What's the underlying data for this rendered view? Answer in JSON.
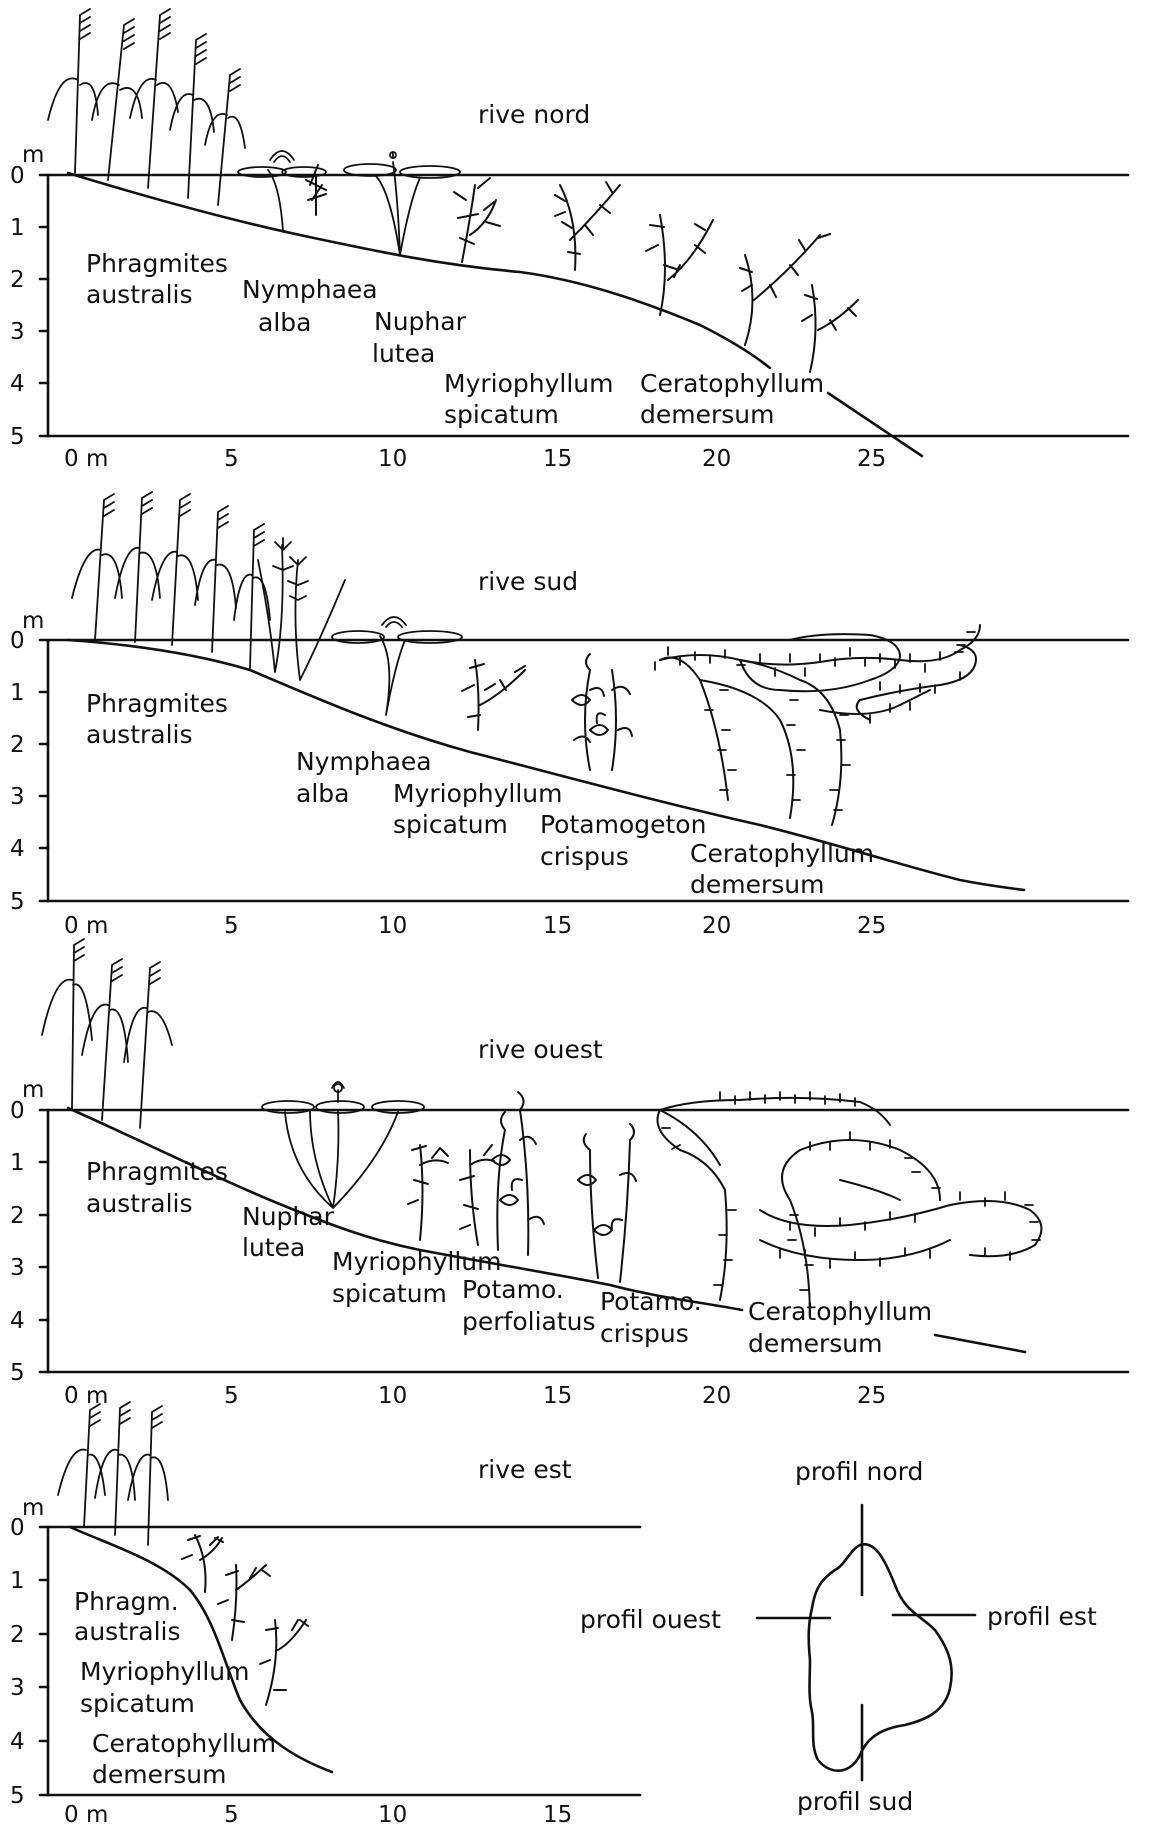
{
  "panels": [
    {
      "id": "nord",
      "title": "rive nord",
      "y_unit": "m",
      "y_ticks": [
        "0",
        "1",
        "2",
        "3",
        "4",
        "5"
      ],
      "x_ticks": [
        "0 m",
        "5",
        "10",
        "15",
        "20",
        "25"
      ],
      "species": [
        {
          "line1": "Phragmites",
          "line2": "australis"
        },
        {
          "line1": "Nymphaea",
          "line2": "alba"
        },
        {
          "line1": "Nuphar",
          "line2": "lutea"
        },
        {
          "line1": "Myriophyllum",
          "line2": "spicatum"
        },
        {
          "line1": "Ceratophyllum",
          "line2": "demersum"
        }
      ]
    },
    {
      "id": "sud",
      "title": "rive sud",
      "y_unit": "m",
      "y_ticks": [
        "0",
        "1",
        "2",
        "3",
        "4",
        "5"
      ],
      "x_ticks": [
        "0 m",
        "5",
        "10",
        "15",
        "20",
        "25"
      ],
      "species": [
        {
          "line1": "Phragmites",
          "line2": "australis"
        },
        {
          "line1": "Nymphaea",
          "line2": "alba"
        },
        {
          "line1": "Myriophyllum",
          "line2": "spicatum"
        },
        {
          "line1": "Potamogeton",
          "line2": "crispus"
        },
        {
          "line1": "Ceratophyllum",
          "line2": "demersum"
        }
      ]
    },
    {
      "id": "ouest",
      "title": "rive ouest",
      "y_unit": "m",
      "y_ticks": [
        "0",
        "1",
        "2",
        "3",
        "4",
        "5"
      ],
      "x_ticks": [
        "0 m",
        "5",
        "10",
        "15",
        "20",
        "25"
      ],
      "species": [
        {
          "line1": "Phragmites",
          "line2": "australis"
        },
        {
          "line1": "Nuphar",
          "line2": "lutea"
        },
        {
          "line1": "Myriophyllum",
          "line2": "spicatum"
        },
        {
          "line1": "Potamo.",
          "line2": "perfoliatus"
        },
        {
          "line1": "Potamo.",
          "line2": "crispus"
        },
        {
          "line1": "Ceratophyllum",
          "line2": "demersum"
        }
      ]
    },
    {
      "id": "est",
      "title": "rive est",
      "y_unit": "m",
      "y_ticks": [
        "0",
        "1",
        "2",
        "3",
        "4",
        "5"
      ],
      "x_ticks": [
        "0 m",
        "5",
        "10",
        "15"
      ],
      "species": [
        {
          "line1": "Phragm.",
          "line2": "australis"
        },
        {
          "line1": "Myriophyllum",
          "line2": "spicatum"
        },
        {
          "line1": "Ceratophyllum",
          "line2": "demersum"
        }
      ]
    }
  ],
  "locator": {
    "north": "profil nord",
    "south": "profil sud",
    "west": "profil ouest",
    "east": "profil est"
  }
}
